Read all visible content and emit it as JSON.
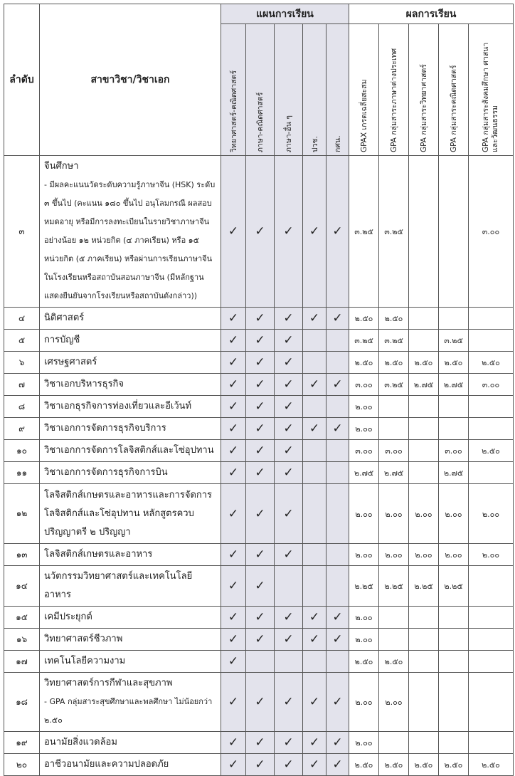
{
  "header": {
    "no": "ลำดับ",
    "subject": "สาขาวิชา/วิชาเอก",
    "plan_group": "แผนการเรียน",
    "result_group": "ผลการเรียน",
    "plans": [
      "วิทยาศาสตร์-คณิตศาสตร์",
      "ภาษา-คณิตศาสตร์",
      "ภาษา-อื่น ๆ",
      "ปวช.",
      "กศน."
    ],
    "results": [
      "GPAX เกรดเฉลี่ยสะสม",
      "GPA กลุ่มสาระภาษาต่างประเทศ",
      "GPA กลุ่มสาระวิทยาศาสตร์",
      "GPA กลุ่มสาระคณิตศาสตร์",
      "GPA กลุ่มสาระสังคมศึกษา ศาสนา และวัฒนธรรม"
    ]
  },
  "check_mark": "✓",
  "rows": [
    {
      "no": "๓",
      "title": "จีนศึกษา",
      "note": "- มีผลคะแนนวัดระดับความรู้ภาษาจีน (HSK) ระดับ ๓ ขึ้นไป (คะแนน ๑๘๐ ขึ้นไป อนุโลมกรณี ผลสอบหมดอายุ หรือมีการลงทะเบียนในรายวิชาภาษาจีนอย่างน้อย ๑๒ หน่วยกิต (๔ ภาคเรียน) หรือ ๑๕ หน่วยกิต (๕ ภาคเรียน) หรือผ่านการเรียนภาษาจีนในโรงเรียนหรือสถาบันสอนภาษาจีน (มีหลักฐานแสดงยืนยันจากโรงเรียนหรือสถาบันดังกล่าว))",
      "plans": [
        true,
        true,
        true,
        true,
        true
      ],
      "gpa": [
        "๓.๒๕",
        "๓.๒๕",
        "",
        "",
        "๓.๐๐"
      ]
    },
    {
      "no": "๔",
      "title": "นิติศาสตร์",
      "plans": [
        true,
        true,
        true,
        true,
        true
      ],
      "gpa": [
        "๒.๕๐",
        "๒.๕๐",
        "",
        "",
        ""
      ]
    },
    {
      "no": "๕",
      "title": "การบัญชี",
      "plans": [
        true,
        true,
        true,
        false,
        false
      ],
      "gpa": [
        "๓.๒๕",
        "๓.๒๕",
        "",
        "๓.๒๕",
        ""
      ]
    },
    {
      "no": "๖",
      "title": "เศรษฐศาสตร์",
      "plans": [
        true,
        true,
        true,
        false,
        false
      ],
      "gpa": [
        "๒.๕๐",
        "๒.๕๐",
        "๒.๕๐",
        "๒.๕๐",
        "๒.๕๐"
      ]
    },
    {
      "no": "๗",
      "title": "วิชาเอกบริหารธุรกิจ",
      "plans": [
        true,
        true,
        true,
        true,
        true
      ],
      "gpa": [
        "๓.๐๐",
        "๓.๒๕",
        "๒.๗๕",
        "๒.๗๕",
        "๓.๐๐"
      ]
    },
    {
      "no": "๘",
      "title": "วิชาเอกธุรกิจการท่องเที่ยวและอีเว้นท์",
      "plans": [
        true,
        true,
        true,
        false,
        false
      ],
      "gpa": [
        "๒.๐๐",
        "",
        "",
        "",
        ""
      ]
    },
    {
      "no": "๙",
      "title": "วิชาเอกการจัดการธุรกิจบริการ",
      "plans": [
        true,
        true,
        true,
        true,
        true
      ],
      "gpa": [
        "๒.๐๐",
        "",
        "",
        "",
        ""
      ]
    },
    {
      "no": "๑๐",
      "title": "วิชาเอกการจัดการโลจิสติกส์และโซ่อุปทาน",
      "plans": [
        true,
        true,
        true,
        false,
        false
      ],
      "gpa": [
        "๓.๐๐",
        "๓.๐๐",
        "",
        "๓.๐๐",
        "๒.๕๐"
      ]
    },
    {
      "no": "๑๑",
      "title": "วิชาเอกการจัดการธุรกิจการบิน",
      "plans": [
        true,
        true,
        true,
        false,
        false
      ],
      "gpa": [
        "๒.๗๕",
        "๒.๗๕",
        "",
        "๒.๗๕",
        ""
      ]
    },
    {
      "no": "๑๒",
      "title": "โลจิสติกส์เกษตรและอาหารและการจัดการโลจิสติกส์และโซ่อุปทาน หลักสูตรควบปริญญาตรี ๒ ปริญญา",
      "plans": [
        true,
        true,
        true,
        false,
        false
      ],
      "gpa": [
        "๒.๐๐",
        "๒.๐๐",
        "๒.๐๐",
        "๒.๐๐",
        "๒.๐๐"
      ]
    },
    {
      "no": "๑๓",
      "title": "โลจิสติกส์เกษตรและอาหาร",
      "plans": [
        true,
        true,
        true,
        false,
        false
      ],
      "gpa": [
        "๒.๐๐",
        "๒.๐๐",
        "๒.๐๐",
        "๒.๐๐",
        "๒.๐๐"
      ]
    },
    {
      "no": "๑๔",
      "title": "นวัตกรรมวิทยาศาสตร์และเทคโนโลยีอาหาร",
      "plans": [
        true,
        true,
        false,
        false,
        false
      ],
      "gpa": [
        "๒.๒๕",
        "๒.๒๕",
        "๒.๒๕",
        "๒.๒๕",
        ""
      ]
    },
    {
      "no": "๑๕",
      "title": "เคมีประยุกต์",
      "plans": [
        true,
        true,
        true,
        true,
        true
      ],
      "gpa": [
        "๒.๐๐",
        "",
        "",
        "",
        ""
      ]
    },
    {
      "no": "๑๖",
      "title": "วิทยาศาสตร์ชีวภาพ",
      "plans": [
        true,
        true,
        true,
        true,
        true
      ],
      "gpa": [
        "๒.๐๐",
        "",
        "",
        "",
        ""
      ]
    },
    {
      "no": "๑๗",
      "title": "เทคโนโลยีความงาม",
      "plans": [
        true,
        false,
        false,
        false,
        false
      ],
      "gpa": [
        "๒.๕๐",
        "๒.๕๐",
        "",
        "",
        ""
      ]
    },
    {
      "no": "๑๘",
      "title": "วิทยาศาสตร์การกีฬาและสุขภาพ",
      "note": "- GPA กลุ่มสาระสุขศึกษาและพลศึกษา ไม่น้อยกว่า ๒.๕๐",
      "plans": [
        true,
        true,
        true,
        true,
        true
      ],
      "gpa": [
        "๒.๐๐",
        "๒.๐๐",
        "",
        "",
        ""
      ]
    },
    {
      "no": "๑๙",
      "title": "อนามัยสิ่งแวดล้อม",
      "plans": [
        true,
        true,
        true,
        true,
        true
      ],
      "gpa": [
        "๒.๐๐",
        "",
        "",
        "",
        ""
      ]
    },
    {
      "no": "๒๐",
      "title": "อาชีวอนามัยและความปลอดภัย",
      "plans": [
        true,
        true,
        true,
        true,
        true
      ],
      "gpa": [
        "๒.๕๐",
        "๒.๕๐",
        "๒.๕๐",
        "๒.๕๐",
        "๒.๕๐"
      ]
    }
  ]
}
